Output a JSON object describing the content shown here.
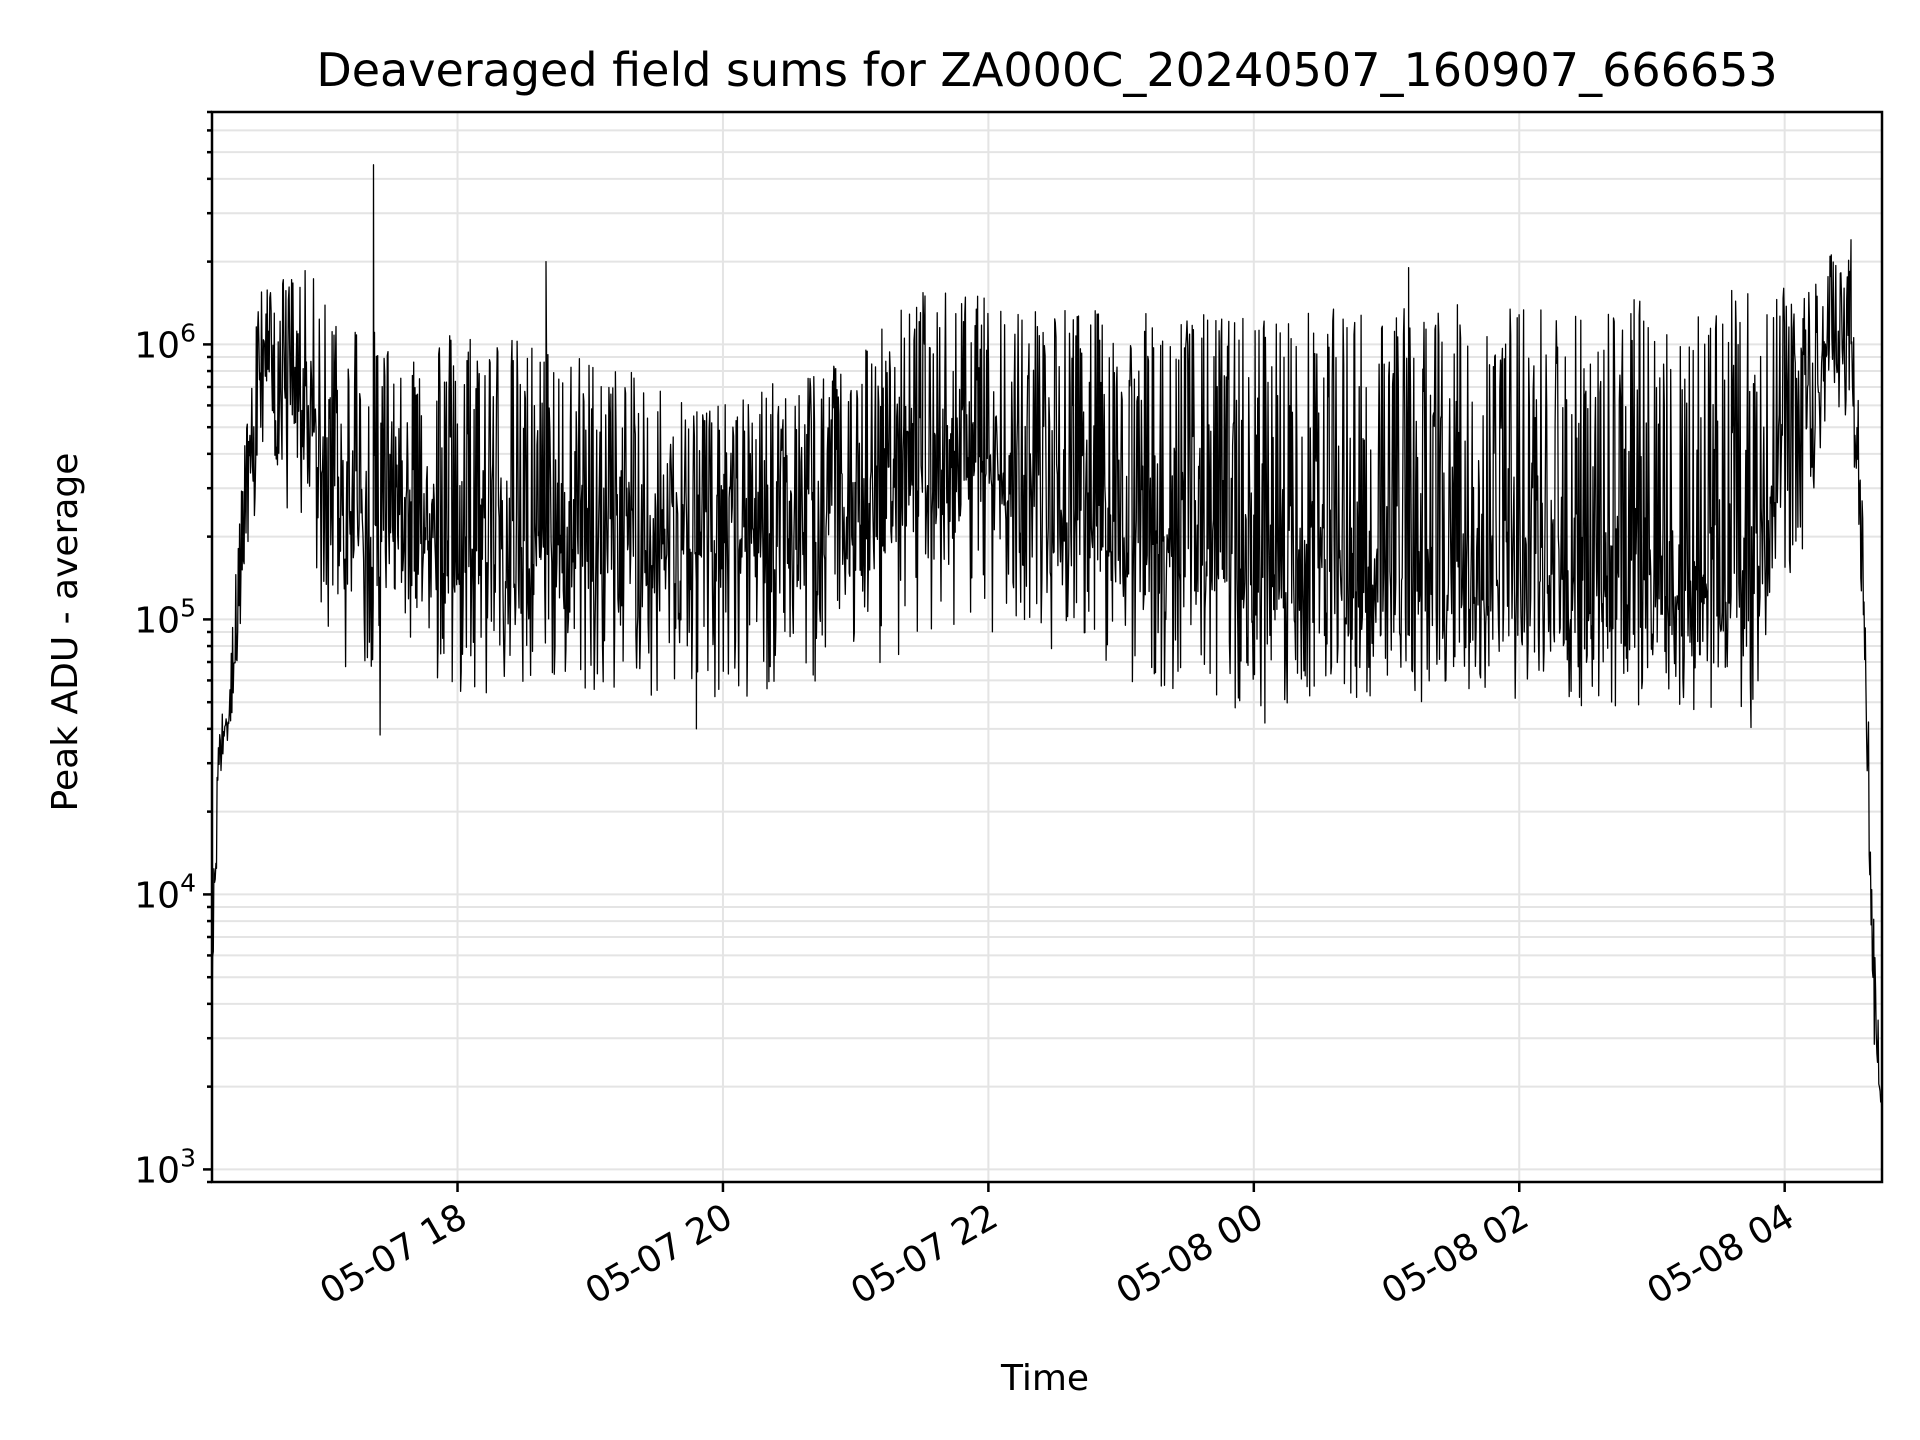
{
  "chart_data": {
    "type": "line",
    "title": "Deaveraged field sums for ZA000C_20240507_160907_666653",
    "xlabel": "Time",
    "ylabel": "Peak ADU - average",
    "yscale": "log",
    "ylim": [
      900,
      7000000
    ],
    "xlim": [
      "2024-05-07 16:09",
      "2024-05-08 04:44"
    ],
    "grid": true,
    "line_color": "#000000",
    "x_ticks": [
      {
        "value": "2024-05-07 18:00",
        "label": "05-07 18"
      },
      {
        "value": "2024-05-07 20:00",
        "label": "05-07 20"
      },
      {
        "value": "2024-05-07 22:00",
        "label": "05-07 22"
      },
      {
        "value": "2024-05-08 00:00",
        "label": "05-08 00"
      },
      {
        "value": "2024-05-08 02:00",
        "label": "05-08 02"
      },
      {
        "value": "2024-05-08 04:00",
        "label": "05-08 04"
      }
    ],
    "y_ticks": [
      {
        "value": 1000,
        "base": "10",
        "exp": "3"
      },
      {
        "value": 10000,
        "base": "10",
        "exp": "4"
      },
      {
        "value": 100000,
        "base": "10",
        "exp": "5"
      },
      {
        "value": 1000000,
        "base": "10",
        "exp": "6"
      }
    ],
    "series": [
      {
        "envelope": [
          {
            "t": "2024-05-07 16:09",
            "low": 3000,
            "high": 8000,
            "typical": 5000
          },
          {
            "t": "2024-05-07 16:12",
            "low": 20000,
            "high": 40000,
            "typical": 30000
          },
          {
            "t": "2024-05-07 16:20",
            "low": 60000,
            "high": 200000,
            "typical": 80000
          },
          {
            "t": "2024-05-07 16:30",
            "low": 250000,
            "high": 1600000,
            "typical": 900000
          },
          {
            "t": "2024-05-07 16:50",
            "low": 200000,
            "high": 1900000,
            "typical": 600000
          },
          {
            "t": "2024-05-07 17:05",
            "low": 60000,
            "high": 1500000,
            "typical": 250000
          },
          {
            "t": "2024-05-07 17:30",
            "low": 70000,
            "high": 1000000,
            "typical": 250000
          },
          {
            "t": "2024-05-07 18:00",
            "low": 50000,
            "high": 1200000,
            "typical": 200000
          },
          {
            "t": "2024-05-07 19:00",
            "low": 55000,
            "high": 900000,
            "typical": 200000
          },
          {
            "t": "2024-05-07 20:00",
            "low": 50000,
            "high": 600000,
            "typical": 200000
          },
          {
            "t": "2024-05-07 21:00",
            "low": 60000,
            "high": 1000000,
            "typical": 220000
          },
          {
            "t": "2024-05-07 21:30",
            "low": 80000,
            "high": 1600000,
            "typical": 350000
          },
          {
            "t": "2024-05-07 22:00",
            "low": 90000,
            "high": 1500000,
            "typical": 400000
          },
          {
            "t": "2024-05-07 23:00",
            "low": 60000,
            "high": 1300000,
            "typical": 250000
          },
          {
            "t": "2024-05-08 00:00",
            "low": 45000,
            "high": 1300000,
            "typical": 150000
          },
          {
            "t": "2024-05-08 01:00",
            "low": 50000,
            "high": 1400000,
            "typical": 150000
          },
          {
            "t": "2024-05-08 02:00",
            "low": 50000,
            "high": 1400000,
            "typical": 140000
          },
          {
            "t": "2024-05-08 03:00",
            "low": 45000,
            "high": 1500000,
            "typical": 130000
          },
          {
            "t": "2024-05-08 03:45",
            "low": 40000,
            "high": 1600000,
            "typical": 120000
          },
          {
            "t": "2024-05-08 04:05",
            "low": 150000,
            "high": 1600000,
            "typical": 800000
          },
          {
            "t": "2024-05-08 04:30",
            "low": 600000,
            "high": 2500000,
            "typical": 1000000
          },
          {
            "t": "2024-05-08 04:36",
            "low": 50000,
            "high": 200000,
            "typical": 80000
          },
          {
            "t": "2024-05-08 04:40",
            "low": 3000,
            "high": 9000,
            "typical": 5000
          },
          {
            "t": "2024-05-08 04:44",
            "low": 1300,
            "high": 2000,
            "typical": 1500
          }
        ],
        "spikes": [
          {
            "t": "2024-05-07 17:22",
            "value": 4500000
          },
          {
            "t": "2024-05-07 17:25",
            "value": 38000
          },
          {
            "t": "2024-05-07 18:40",
            "value": 2000000
          },
          {
            "t": "2024-05-07 19:48",
            "value": 40000
          },
          {
            "t": "2024-05-08 01:10",
            "value": 1900000
          },
          {
            "t": "2024-05-08 00:05",
            "value": 42000
          },
          {
            "t": "2024-05-08 04:30",
            "value": 2400000
          }
        ]
      }
    ]
  }
}
